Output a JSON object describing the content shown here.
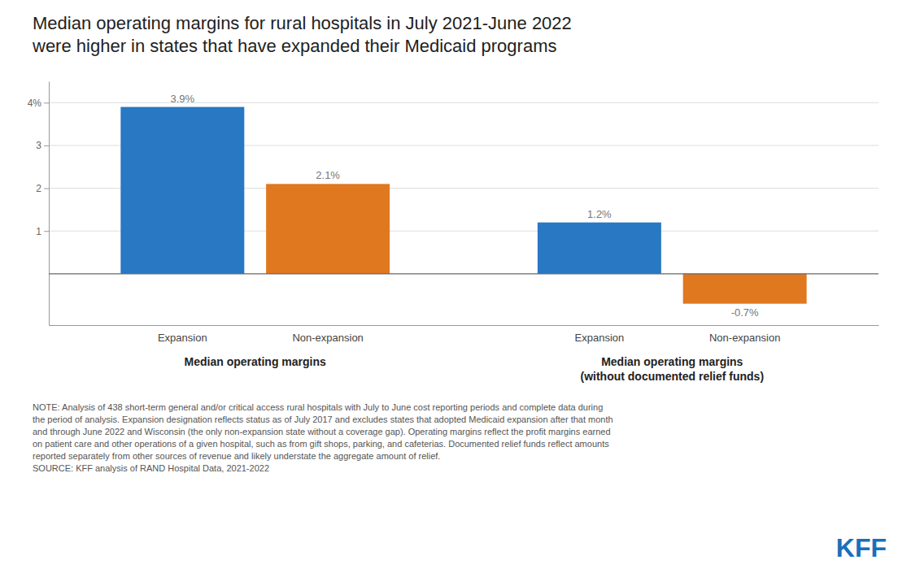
{
  "chart_data": {
    "type": "bar",
    "title": "Median operating margins for rural hospitals in July 2021-June 2022\nwere higher in states that have expanded their Medicaid programs",
    "categories": [
      "Expansion",
      "Non-expansion",
      "Expansion",
      "Non-expansion"
    ],
    "groups": [
      "Median operating margins",
      "Median operating margins\n(without documented relief funds)"
    ],
    "values": [
      3.9,
      2.1,
      1.2,
      -0.7
    ],
    "value_labels": [
      "3.9%",
      "2.1%",
      "1.2%",
      "-0.7%"
    ],
    "colors": [
      "#2878c3",
      "#e07820",
      "#2878c3",
      "#e07820"
    ],
    "data_labels": true,
    "ylim": [
      -1.2,
      4.5
    ],
    "yticks": [
      1,
      2,
      3,
      {
        "value": 4,
        "label": "4%"
      }
    ],
    "grid": true,
    "note": "NOTE: Analysis of 438 short-term general and/or critical access rural hospitals with July to June cost reporting periods and complete data during\nthe period of analysis. Expansion designation reflects status as of July 2017 and excludes states that adopted Medicaid expansion after that month\nand through June 2022 and Wisconsin (the only non-expansion state without a coverage gap). Operating margins reflect the profit margins earned\non patient care and other operations of a given hospital, such as from gift shops, parking, and cafeterias. Documented relief funds reflect amounts\nreported separately from other sources of revenue and likely understate the aggregate amount of relief.\nSOURCE: KFF analysis of RAND Hospital Data, 2021-2022",
    "annotations": [
      "KFF"
    ]
  }
}
